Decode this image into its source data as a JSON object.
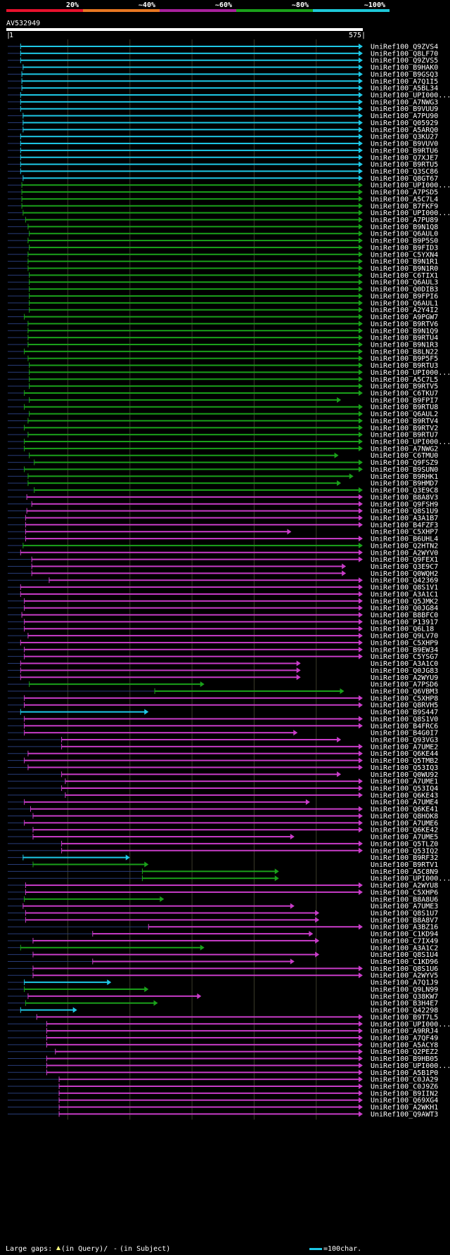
{
  "chart_data": {
    "type": "alignment-overview",
    "query_name": "AV532949",
    "query_start_label": "1",
    "query_end_label": "575",
    "query_length": 575,
    "legend_top": [
      {
        "label": "20%",
        "color": "#e8112d"
      },
      {
        "label": "~40%",
        "color": "#e87722"
      },
      {
        "label": "~60%",
        "color": "#a8219c"
      },
      {
        "label": "~80%",
        "color": "#1aa01a"
      },
      {
        "label": "~100%",
        "color": "#1ec8d8"
      }
    ],
    "footer": {
      "large_gaps_label": "Large gaps:",
      "in_query_label": "(in Query)/",
      "in_subject_label": "(in Subject)",
      "scale_label": "=100char."
    },
    "hits": [
      {
        "name": "UniRef100_Q9ZVS4",
        "start": 24,
        "end": 575,
        "color": "cyan"
      },
      {
        "name": "UniRef100_Q8LF70",
        "start": 24,
        "end": 575,
        "color": "cyan"
      },
      {
        "name": "UniRef100_Q9ZVS5",
        "start": 24,
        "end": 575,
        "color": "cyan"
      },
      {
        "name": "UniRef100_B9HAK0",
        "start": 28,
        "end": 575,
        "color": "cyan"
      },
      {
        "name": "UniRef100_B9GSQ3",
        "start": 26,
        "end": 575,
        "color": "cyan"
      },
      {
        "name": "UniRef100_A7Q1I5",
        "start": 26,
        "end": 575,
        "color": "cyan"
      },
      {
        "name": "UniRef100_A5BL34",
        "start": 26,
        "end": 575,
        "color": "cyan"
      },
      {
        "name": "UniRef100_UPI000...",
        "start": 24,
        "end": 575,
        "color": "cyan"
      },
      {
        "name": "UniRef100_A7NWG3",
        "start": 24,
        "end": 575,
        "color": "cyan"
      },
      {
        "name": "UniRef100_B9VUU9",
        "start": 24,
        "end": 575,
        "color": "cyan"
      },
      {
        "name": "UniRef100_A7PU90",
        "start": 28,
        "end": 575,
        "color": "cyan"
      },
      {
        "name": "UniRef100_Q05929",
        "start": 28,
        "end": 575,
        "color": "cyan"
      },
      {
        "name": "UniRef100_A5ARQ0",
        "start": 28,
        "end": 575,
        "color": "cyan"
      },
      {
        "name": "UniRef100_Q3KU27",
        "start": 24,
        "end": 575,
        "color": "cyan"
      },
      {
        "name": "UniRef100_B9VUV0",
        "start": 24,
        "end": 575,
        "color": "cyan"
      },
      {
        "name": "UniRef100_B9RTU6",
        "start": 24,
        "end": 575,
        "color": "cyan"
      },
      {
        "name": "UniRef100_Q7XJE7",
        "start": 24,
        "end": 575,
        "color": "cyan"
      },
      {
        "name": "UniRef100_B9RTU5",
        "start": 24,
        "end": 575,
        "color": "cyan"
      },
      {
        "name": "UniRef100_Q3SC86",
        "start": 24,
        "end": 575,
        "color": "cyan"
      },
      {
        "name": "UniRef100_Q8GT67",
        "start": 28,
        "end": 575,
        "color": "cyan"
      },
      {
        "name": "UniRef100_UPI000...",
        "start": 26,
        "end": 575,
        "color": "green"
      },
      {
        "name": "UniRef100_A7PSD5",
        "start": 26,
        "end": 575,
        "color": "green"
      },
      {
        "name": "UniRef100_A5C7L4",
        "start": 26,
        "end": 575,
        "color": "green"
      },
      {
        "name": "UniRef100_B7FKF9",
        "start": 26,
        "end": 575,
        "color": "green"
      },
      {
        "name": "UniRef100_UPI000...",
        "start": 28,
        "end": 575,
        "color": "green"
      },
      {
        "name": "UniRef100_A7PU89",
        "start": 32,
        "end": 575,
        "color": "green"
      },
      {
        "name": "UniRef100_B9N1Q8",
        "start": 36,
        "end": 575,
        "color": "green"
      },
      {
        "name": "UniRef100_Q6AUL0",
        "start": 38,
        "end": 575,
        "color": "green"
      },
      {
        "name": "UniRef100_B9P5S0",
        "start": 36,
        "end": 575,
        "color": "green"
      },
      {
        "name": "UniRef100_B9FID3",
        "start": 38,
        "end": 575,
        "color": "green"
      },
      {
        "name": "UniRef100_C5YXN4",
        "start": 36,
        "end": 575,
        "color": "green"
      },
      {
        "name": "UniRef100_B9N1R1",
        "start": 36,
        "end": 575,
        "color": "green"
      },
      {
        "name": "UniRef100_B9N1R0",
        "start": 36,
        "end": 575,
        "color": "green"
      },
      {
        "name": "UniRef100_C6TIX1",
        "start": 38,
        "end": 575,
        "color": "green"
      },
      {
        "name": "UniRef100_Q6AUL3",
        "start": 38,
        "end": 575,
        "color": "green"
      },
      {
        "name": "UniRef100_Q0DIB3",
        "start": 38,
        "end": 575,
        "color": "green"
      },
      {
        "name": "UniRef100_B9FPI6",
        "start": 38,
        "end": 575,
        "color": "green"
      },
      {
        "name": "UniRef100_Q6AUL1",
        "start": 38,
        "end": 575,
        "color": "green"
      },
      {
        "name": "UniRef100_A2Y4I2",
        "start": 38,
        "end": 575,
        "color": "green"
      },
      {
        "name": "UniRef100_A9PGW7",
        "start": 30,
        "end": 575,
        "color": "green"
      },
      {
        "name": "UniRef100_B9RTV6",
        "start": 36,
        "end": 575,
        "color": "green"
      },
      {
        "name": "UniRef100_B9N1Q9",
        "start": 36,
        "end": 575,
        "color": "green"
      },
      {
        "name": "UniRef100_B9RTU4",
        "start": 36,
        "end": 575,
        "color": "green"
      },
      {
        "name": "UniRef100_B9N1R3",
        "start": 36,
        "end": 575,
        "color": "green"
      },
      {
        "name": "UniRef100_B8LN22",
        "start": 30,
        "end": 575,
        "color": "green"
      },
      {
        "name": "UniRef100_B9P5F5",
        "start": 36,
        "end": 575,
        "color": "green"
      },
      {
        "name": "UniRef100_B9RTU3",
        "start": 38,
        "end": 575,
        "color": "green"
      },
      {
        "name": "UniRef100_UPI000...",
        "start": 38,
        "end": 575,
        "color": "green"
      },
      {
        "name": "UniRef100_A5C7L5",
        "start": 38,
        "end": 575,
        "color": "green"
      },
      {
        "name": "UniRef100_B9RTV5",
        "start": 38,
        "end": 575,
        "color": "green"
      },
      {
        "name": "UniRef100_C6TKU7",
        "start": 30,
        "end": 575,
        "color": "green"
      },
      {
        "name": "UniRef100_B9FPI7",
        "start": 38,
        "end": 540,
        "color": "green"
      },
      {
        "name": "UniRef100_B9RTU8",
        "start": 30,
        "end": 575,
        "color": "green"
      },
      {
        "name": "UniRef100_Q6AUL2",
        "start": 38,
        "end": 575,
        "color": "green"
      },
      {
        "name": "UniRef100_B9RTV4",
        "start": 36,
        "end": 575,
        "color": "green"
      },
      {
        "name": "UniRef100_B9RTV2",
        "start": 30,
        "end": 575,
        "color": "green"
      },
      {
        "name": "UniRef100_B9RTU7",
        "start": 36,
        "end": 575,
        "color": "green"
      },
      {
        "name": "UniRef100_UPI000...",
        "start": 30,
        "end": 575,
        "color": "green"
      },
      {
        "name": "UniRef100_A7NWG2",
        "start": 30,
        "end": 575,
        "color": "green"
      },
      {
        "name": "UniRef100_C6TMU0",
        "start": 38,
        "end": 536,
        "color": "green"
      },
      {
        "name": "UniRef100_Q9FSZ9",
        "start": 46,
        "end": 575,
        "color": "green"
      },
      {
        "name": "UniRef100_B9SUN0",
        "start": 30,
        "end": 575,
        "color": "green"
      },
      {
        "name": "UniRef100_B9RHK1",
        "start": 36,
        "end": 560,
        "color": "green"
      },
      {
        "name": "UniRef100_B9HMD7",
        "start": 36,
        "end": 540,
        "color": "green"
      },
      {
        "name": "UniRef100_Q3E9C8",
        "start": 46,
        "end": 575,
        "color": "green"
      },
      {
        "name": "UniRef100_B8A8V3",
        "start": 34,
        "end": 575,
        "color": "magenta"
      },
      {
        "name": "UniRef100_Q9FSH9",
        "start": 42,
        "end": 575,
        "color": "magenta"
      },
      {
        "name": "UniRef100_Q8S1U9",
        "start": 34,
        "end": 575,
        "color": "magenta"
      },
      {
        "name": "UniRef100_A3A1B7",
        "start": 32,
        "end": 575,
        "color": "magenta"
      },
      {
        "name": "UniRef100_B4FZF3",
        "start": 32,
        "end": 575,
        "color": "magenta"
      },
      {
        "name": "UniRef100_C5XHP7",
        "start": 32,
        "end": 460,
        "color": "magenta"
      },
      {
        "name": "UniRef100_B6UHL4",
        "start": 32,
        "end": 575,
        "color": "magenta"
      },
      {
        "name": "UniRef100_Q2HTN2",
        "start": 28,
        "end": 575,
        "color": "green"
      },
      {
        "name": "UniRef100_A2WYV0",
        "start": 24,
        "end": 575,
        "color": "magenta"
      },
      {
        "name": "UniRef100_Q9FEX1",
        "start": 42,
        "end": 575,
        "color": "magenta"
      },
      {
        "name": "UniRef100_Q3E9C7",
        "start": 42,
        "end": 548,
        "color": "magenta"
      },
      {
        "name": "UniRef100_Q0WQH2",
        "start": 42,
        "end": 548,
        "color": "magenta"
      },
      {
        "name": "UniRef100_Q42369",
        "start": 70,
        "end": 575,
        "color": "magenta"
      },
      {
        "name": "UniRef100_Q8S1V1",
        "start": 24,
        "end": 575,
        "color": "magenta"
      },
      {
        "name": "UniRef100_A3A1C1",
        "start": 24,
        "end": 575,
        "color": "magenta"
      },
      {
        "name": "UniRef100_Q5JMK2",
        "start": 30,
        "end": 575,
        "color": "magenta"
      },
      {
        "name": "UniRef100_Q0JG84",
        "start": 30,
        "end": 575,
        "color": "magenta"
      },
      {
        "name": "UniRef100_B8BFC0",
        "start": 26,
        "end": 575,
        "color": "magenta"
      },
      {
        "name": "UniRef100_P13917",
        "start": 30,
        "end": 575,
        "color": "magenta"
      },
      {
        "name": "UniRef100_Q6L18",
        "start": 30,
        "end": 575,
        "color": "magenta"
      },
      {
        "name": "UniRef100_Q9LV70",
        "start": 36,
        "end": 575,
        "color": "magenta"
      },
      {
        "name": "UniRef100_C5XHP9",
        "start": 24,
        "end": 575,
        "color": "magenta"
      },
      {
        "name": "UniRef100_B9EW34",
        "start": 30,
        "end": 575,
        "color": "magenta"
      },
      {
        "name": "UniRef100_C5YSG7",
        "start": 30,
        "end": 575,
        "color": "magenta"
      },
      {
        "name": "UniRef100_A3A1C0",
        "start": 24,
        "end": 475,
        "color": "magenta"
      },
      {
        "name": "UniRef100_Q0JG83",
        "start": 24,
        "end": 475,
        "color": "magenta"
      },
      {
        "name": "UniRef100_A2WYU9",
        "start": 24,
        "end": 475,
        "color": "magenta"
      },
      {
        "name": "UniRef100_A7PSD6",
        "start": 38,
        "end": 320,
        "color": "green"
      },
      {
        "name": "UniRef100_Q6VBM3",
        "start": 240,
        "end": 545,
        "color": "green"
      },
      {
        "name": "UniRef100_C5XHP8",
        "start": 30,
        "end": 575,
        "color": "magenta"
      },
      {
        "name": "UniRef100_Q8RVH5",
        "start": 30,
        "end": 575,
        "color": "magenta"
      },
      {
        "name": "UniRef100_B9S447",
        "start": 24,
        "end": 230,
        "color": "cyan"
      },
      {
        "name": "UniRef100_Q8S1V0",
        "start": 30,
        "end": 575,
        "color": "magenta"
      },
      {
        "name": "UniRef100_B4FRC6",
        "start": 30,
        "end": 575,
        "color": "magenta"
      },
      {
        "name": "UniRef100_B4G0I7",
        "start": 30,
        "end": 470,
        "color": "magenta"
      },
      {
        "name": "UniRef100_Q93VG3",
        "start": 90,
        "end": 540,
        "color": "magenta"
      },
      {
        "name": "UniRef100_A7UME2",
        "start": 90,
        "end": 575,
        "color": "magenta"
      },
      {
        "name": "UniRef100_Q6KE44",
        "start": 36,
        "end": 575,
        "color": "magenta"
      },
      {
        "name": "UniRef100_Q5TMB2",
        "start": 30,
        "end": 575,
        "color": "magenta"
      },
      {
        "name": "UniRef100_Q53IQ3",
        "start": 36,
        "end": 575,
        "color": "magenta"
      },
      {
        "name": "UniRef100_Q0WU92",
        "start": 90,
        "end": 540,
        "color": "magenta"
      },
      {
        "name": "UniRef100_A7UME1",
        "start": 96,
        "end": 575,
        "color": "magenta"
      },
      {
        "name": "UniRef100_Q53IQ4",
        "start": 90,
        "end": 575,
        "color": "magenta"
      },
      {
        "name": "UniRef100_Q6KE43",
        "start": 96,
        "end": 575,
        "color": "magenta"
      },
      {
        "name": "UniRef100_A7UME4",
        "start": 30,
        "end": 490,
        "color": "magenta"
      },
      {
        "name": "UniRef100_Q6KE41",
        "start": 40,
        "end": 575,
        "color": "magenta"
      },
      {
        "name": "UniRef100_Q8HOK8",
        "start": 44,
        "end": 575,
        "color": "magenta"
      },
      {
        "name": "UniRef100_A7UME6",
        "start": 30,
        "end": 575,
        "color": "magenta"
      },
      {
        "name": "UniRef100_Q6KE42",
        "start": 44,
        "end": 575,
        "color": "magenta"
      },
      {
        "name": "UniRef100_A7UME5",
        "start": 44,
        "end": 465,
        "color": "magenta"
      },
      {
        "name": "UniRef100_Q5TLZ0",
        "start": 90,
        "end": 575,
        "color": "magenta"
      },
      {
        "name": "UniRef100_Q53IQ2",
        "start": 90,
        "end": 575,
        "color": "magenta"
      },
      {
        "name": "UniRef100_B9RF32",
        "start": 28,
        "end": 200,
        "color": "cyan"
      },
      {
        "name": "UniRef100_B9RTV1",
        "start": 44,
        "end": 230,
        "color": "green"
      },
      {
        "name": "UniRef100_A5C8N9",
        "start": 220,
        "end": 440,
        "color": "green"
      },
      {
        "name": "UniRef100_UPI000...",
        "start": 220,
        "end": 440,
        "color": "green"
      },
      {
        "name": "UniRef100_A2WYU8",
        "start": 32,
        "end": 575,
        "color": "magenta"
      },
      {
        "name": "UniRef100_C5XHP6",
        "start": 32,
        "end": 575,
        "color": "magenta"
      },
      {
        "name": "UniRef100_B8A8U6",
        "start": 30,
        "end": 255,
        "color": "green"
      },
      {
        "name": "UniRef100_A7UME3",
        "start": 28,
        "end": 465,
        "color": "magenta"
      },
      {
        "name": "UniRef100_Q8S1U7",
        "start": 32,
        "end": 505,
        "color": "magenta"
      },
      {
        "name": "UniRef100_B8A8V7",
        "start": 32,
        "end": 505,
        "color": "magenta"
      },
      {
        "name": "UniRef100_A3BZ16",
        "start": 230,
        "end": 575,
        "color": "magenta"
      },
      {
        "name": "UniRef100_C1KD94",
        "start": 140,
        "end": 495,
        "color": "magenta"
      },
      {
        "name": "UniRef100_C7IX49",
        "start": 44,
        "end": 505,
        "color": "magenta"
      },
      {
        "name": "UniRef100_A3A1C2",
        "start": 24,
        "end": 320,
        "color": "green"
      },
      {
        "name": "UniRef100_Q8S1U4",
        "start": 44,
        "end": 505,
        "color": "magenta"
      },
      {
        "name": "UniRef100_C1KD96",
        "start": 140,
        "end": 465,
        "color": "magenta"
      },
      {
        "name": "UniRef100_Q8S1U6",
        "start": 44,
        "end": 575,
        "color": "magenta"
      },
      {
        "name": "UniRef100_A2WYV5",
        "start": 44,
        "end": 575,
        "color": "magenta"
      },
      {
        "name": "UniRef100_A7Q1J9",
        "start": 30,
        "end": 170,
        "color": "cyan"
      },
      {
        "name": "UniRef100_Q9LN99",
        "start": 30,
        "end": 230,
        "color": "green"
      },
      {
        "name": "UniRef100_Q38KW7",
        "start": 36,
        "end": 315,
        "color": "magenta"
      },
      {
        "name": "UniRef100_B3H4E7",
        "start": 32,
        "end": 245,
        "color": "green"
      },
      {
        "name": "UniRef100_Q42298",
        "start": 24,
        "end": 115,
        "color": "cyan"
      },
      {
        "name": "UniRef100_B9T7L5",
        "start": 50,
        "end": 575,
        "color": "magenta"
      },
      {
        "name": "UniRef100_UPI000...",
        "start": 66,
        "end": 575,
        "color": "magenta"
      },
      {
        "name": "UniRef100_A9RRJ4",
        "start": 66,
        "end": 575,
        "color": "magenta"
      },
      {
        "name": "UniRef100_A7QF49",
        "start": 66,
        "end": 575,
        "color": "magenta"
      },
      {
        "name": "UniRef100_A5ACY8",
        "start": 66,
        "end": 575,
        "color": "magenta"
      },
      {
        "name": "UniRef100_Q2PEZ2",
        "start": 80,
        "end": 575,
        "color": "magenta"
      },
      {
        "name": "UniRef100_B9HB05",
        "start": 66,
        "end": 575,
        "color": "magenta"
      },
      {
        "name": "UniRef100_UPI000...",
        "start": 66,
        "end": 575,
        "color": "magenta"
      },
      {
        "name": "UniRef100_A5B1P0",
        "start": 66,
        "end": 575,
        "color": "magenta"
      },
      {
        "name": "UniRef100_C0JA29",
        "start": 86,
        "end": 575,
        "color": "magenta"
      },
      {
        "name": "UniRef100_C0J9Z6",
        "start": 86,
        "end": 575,
        "color": "magenta"
      },
      {
        "name": "UniRef100_B9IIN2",
        "start": 86,
        "end": 575,
        "color": "magenta"
      },
      {
        "name": "UniRef100_Q69XG4",
        "start": 86,
        "end": 575,
        "color": "magenta"
      },
      {
        "name": "UniRef100_A2WKH1",
        "start": 86,
        "end": 575,
        "color": "magenta"
      },
      {
        "name": "UniRef100_Q9AWT3",
        "start": 86,
        "end": 575,
        "color": "magenta"
      }
    ]
  },
  "colors": {
    "cyan": "#1ec8e6",
    "green": "#1aa01a",
    "magenta": "#c83cc8",
    "gap_in_query": "#ffff80",
    "grid": "#3a3a2a",
    "axis": "#ffffff",
    "unaligned": "#283c78"
  }
}
